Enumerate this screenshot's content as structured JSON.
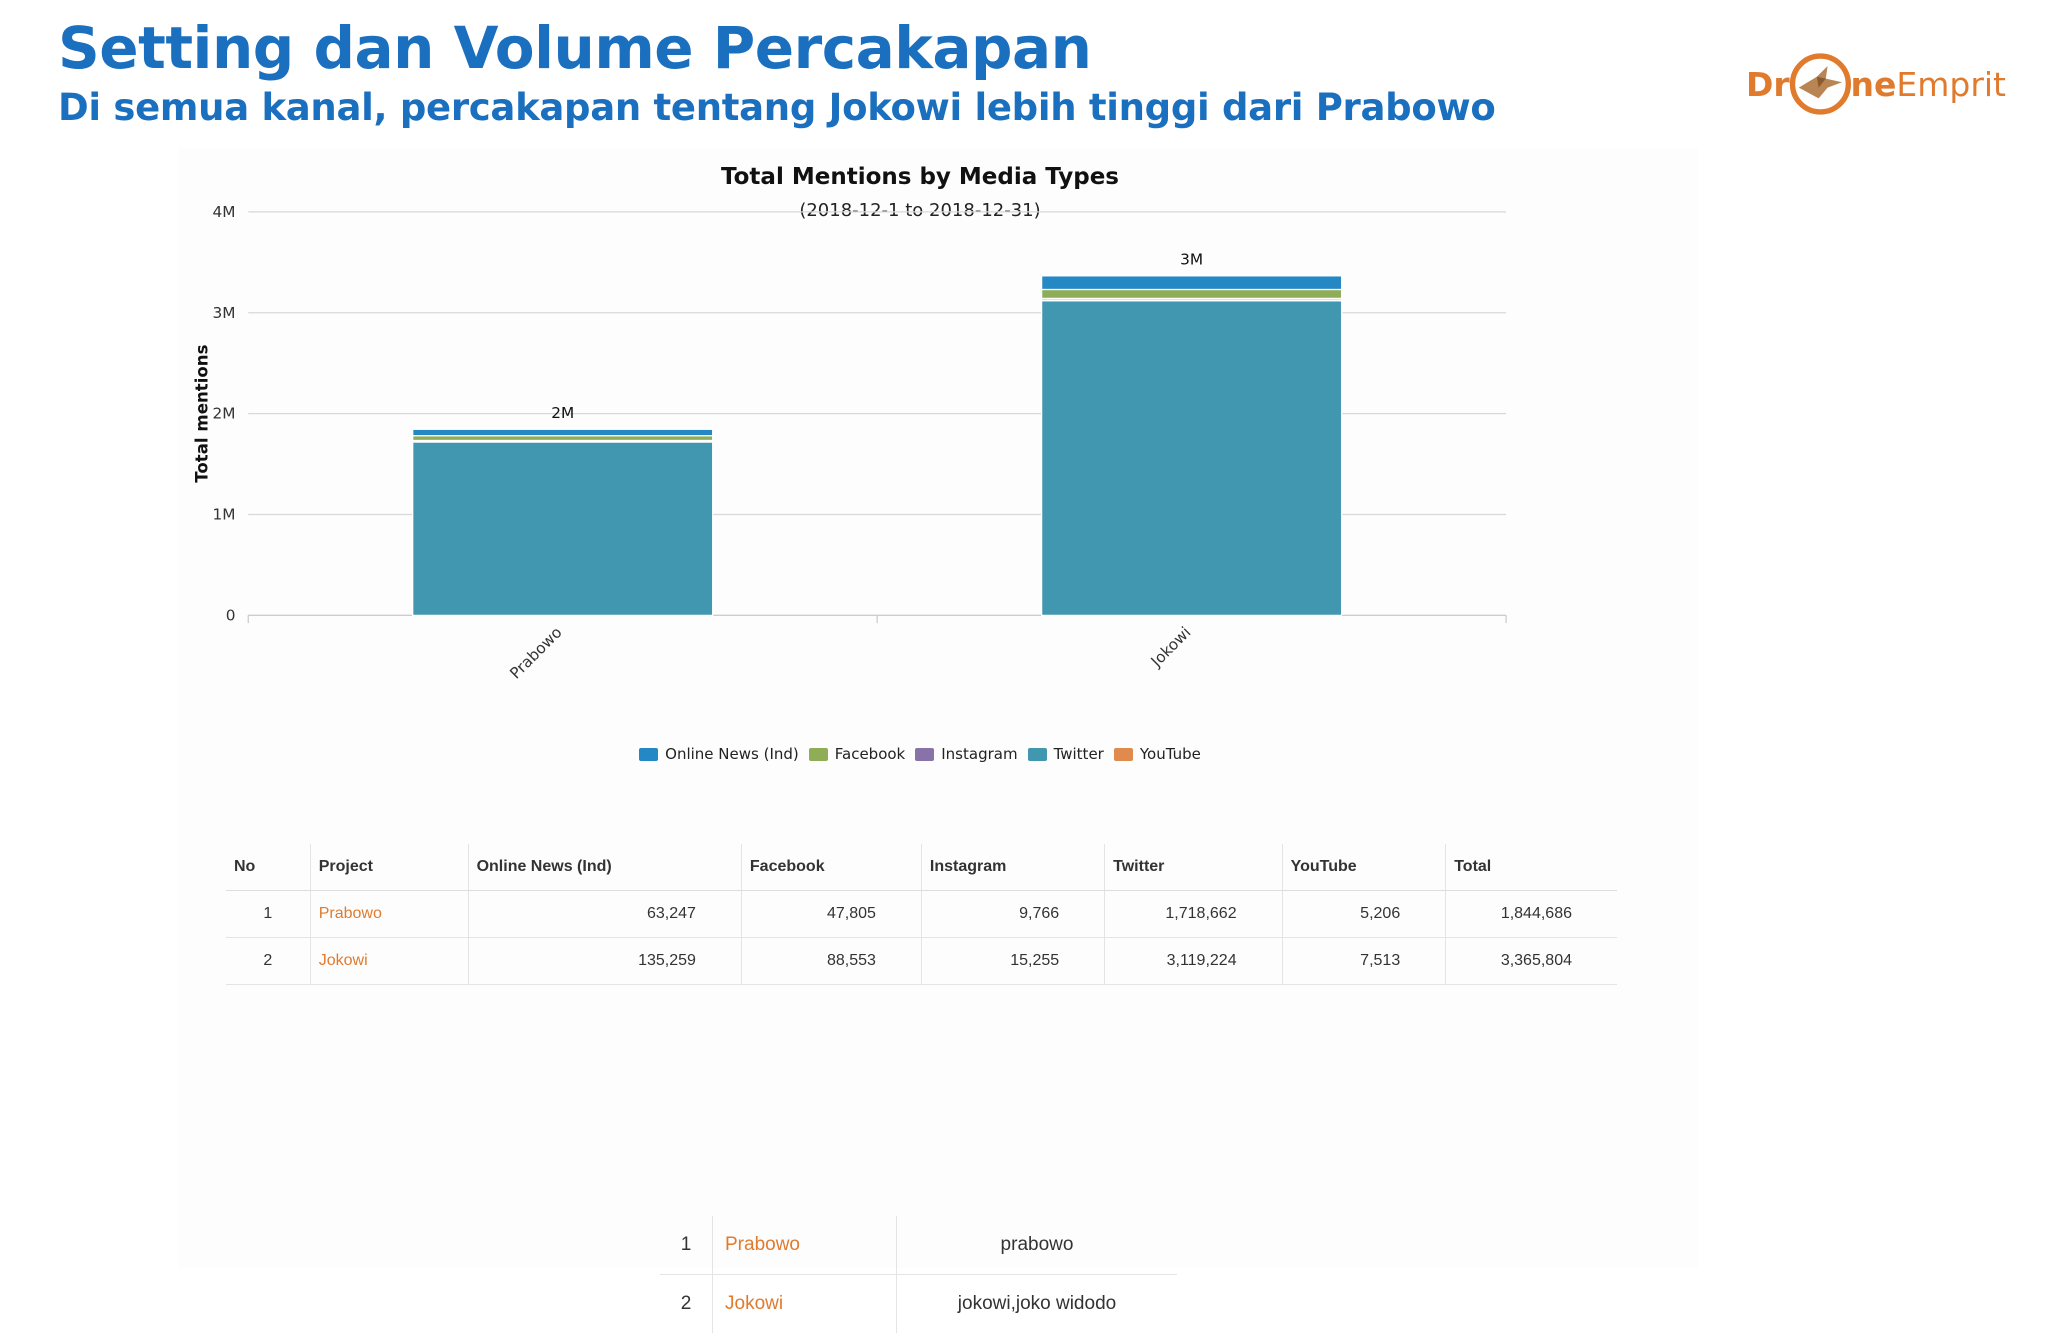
{
  "slide": {
    "title": "Setting dan Volume Percakapan",
    "subtitle": "Di semua kanal, percakapan tentang Jokowi lebih tinggi dari Prabowo"
  },
  "logo": {
    "text_before": "Dr",
    "text_after": "ne",
    "text_end": "Emprit",
    "color": "#e07b2e"
  },
  "chart_data": {
    "type": "bar",
    "stacked": true,
    "title": "Total Mentions by Media Types",
    "subtitle": "(2018-12-1 to 2018-12-31)",
    "xlabel": "",
    "ylabel": "Total mentions",
    "ylim": [
      0,
      4000000
    ],
    "yticks": [
      {
        "value": 0,
        "label": "0"
      },
      {
        "value": 1000000,
        "label": "1M"
      },
      {
        "value": 2000000,
        "label": "2M"
      },
      {
        "value": 3000000,
        "label": "3M"
      },
      {
        "value": 4000000,
        "label": "4M"
      }
    ],
    "categories": [
      "Prabowo",
      "Jokowi"
    ],
    "totals": [
      1844686,
      3365804
    ],
    "total_labels": [
      "2M",
      "3M"
    ],
    "series": [
      {
        "name": "Twitter",
        "color": "#4196b0",
        "values": [
          1718662,
          3119224
        ]
      },
      {
        "name": "YouTube",
        "color": "#e08a4e",
        "values": [
          5206,
          7513
        ]
      },
      {
        "name": "Instagram",
        "color": "#8773a8",
        "values": [
          9766,
          15255
        ]
      },
      {
        "name": "Facebook",
        "color": "#8fad57",
        "values": [
          47805,
          88553
        ]
      },
      {
        "name": "Online News (Ind)",
        "color": "#2388c4",
        "values": [
          63247,
          135259
        ]
      }
    ],
    "legend": {
      "placement": "bottom",
      "order": [
        "Online News (Ind)",
        "Facebook",
        "Instagram",
        "Twitter",
        "YouTube"
      ]
    },
    "grid": true
  },
  "table": {
    "headers": [
      "No",
      "Project",
      "Online News (Ind)",
      "Facebook",
      "Instagram",
      "Twitter",
      "YouTube",
      "Total"
    ],
    "rows": [
      {
        "no": "1",
        "project": "Prabowo",
        "values": [
          "63,247",
          "47,805",
          "9,766",
          "1,718,662",
          "5,206",
          "1,844,686"
        ]
      },
      {
        "no": "2",
        "project": "Jokowi",
        "values": [
          "135,259",
          "88,553",
          "15,255",
          "3,119,224",
          "7,513",
          "3,365,804"
        ]
      }
    ]
  },
  "keywords": [
    {
      "no": "1",
      "project": "Prabowo",
      "keywords": "prabowo"
    },
    {
      "no": "2",
      "project": "Jokowi",
      "keywords": "jokowi,joko widodo"
    }
  ]
}
